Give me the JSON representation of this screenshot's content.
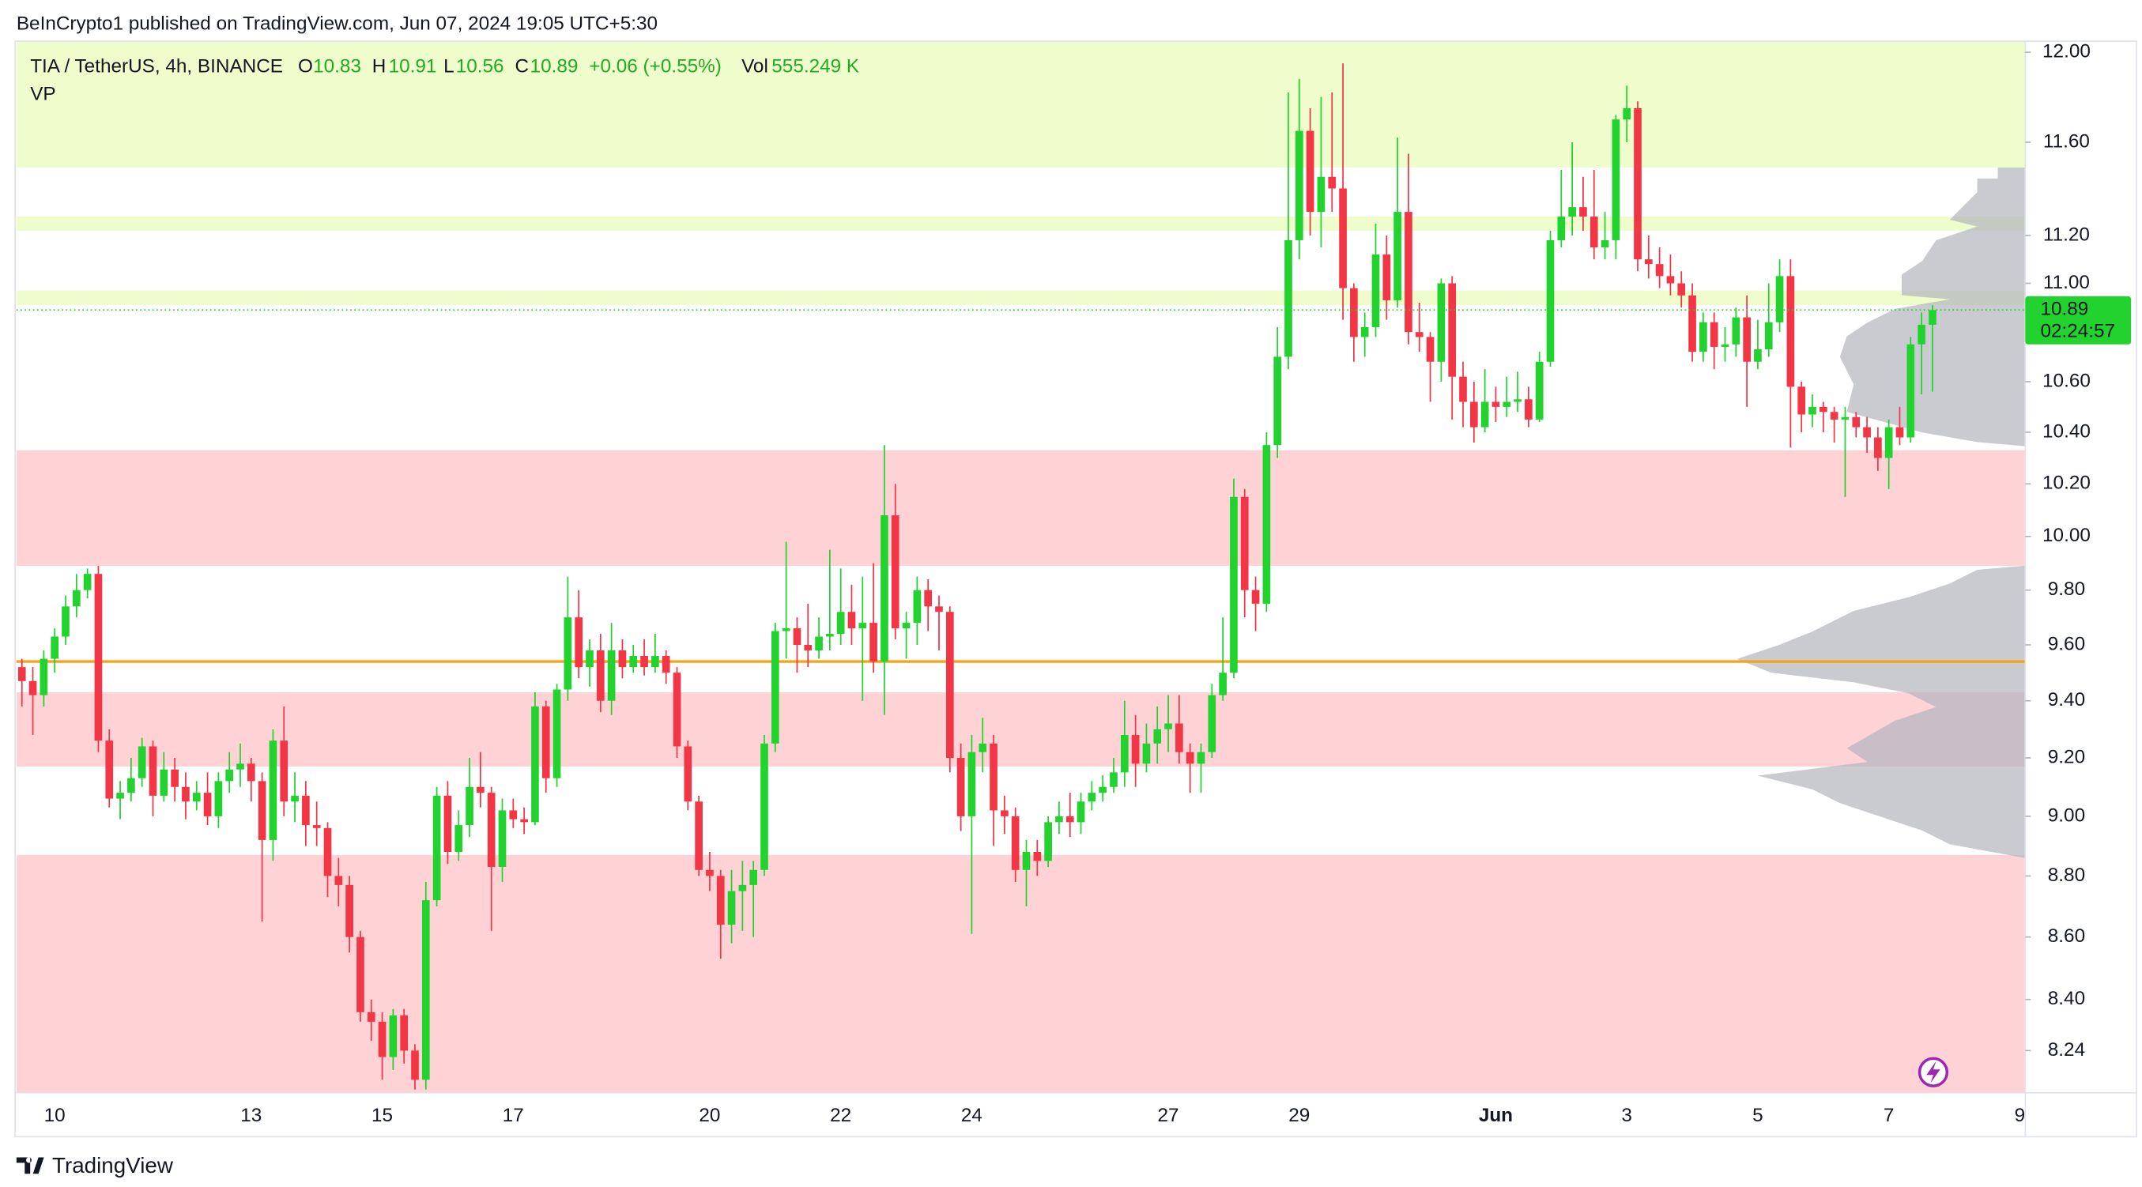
{
  "chart_data": {
    "type": "candlestick",
    "header": "BeInCrypto1 published on TradingView.com, Jun 07, 2024 19:05 UTC+5:30",
    "legend": {
      "symbol": "TIA / TetherUS, 4h, BINANCE",
      "o": "O",
      "h": "H",
      "l": "L",
      "c": "C",
      "change": "+0.06 (+0.55%)",
      "vol": "Vol",
      "volume": "555.249 K",
      "indicator": "VP"
    },
    "footer": "TradingView",
    "countdown": "02:24:57",
    "last_price": 10.89,
    "log": true,
    "up_color": "#22d22f",
    "down_color": "#f23645",
    "level": {
      "value": 9.54,
      "color": "#f7a21b"
    },
    "zones": [
      {
        "from": 11.49,
        "to": 12.05,
        "color": "#effccb"
      },
      {
        "from": 11.22,
        "to": 11.28,
        "color": "#effccb"
      },
      {
        "from": 10.91,
        "to": 10.97,
        "color": "#effccb"
      },
      {
        "from": 9.89,
        "to": 10.33,
        "color": "#ffd3d6"
      },
      {
        "from": 9.17,
        "to": 9.43,
        "color": "#ffd3d6"
      },
      {
        "from": 8.11,
        "to": 8.87,
        "color": "#ffd3d6"
      }
    ],
    "ylim": [
      8.11,
      12.05
    ],
    "yticks": [
      {
        "value": 12,
        "label": "12.00"
      },
      {
        "value": 11.6,
        "label": "11.60"
      },
      {
        "value": 11.2,
        "label": "11.20"
      },
      {
        "value": 11,
        "label": "11.00"
      },
      {
        "value": 10.6,
        "label": "10.60"
      },
      {
        "value": 10.4,
        "label": "10.40"
      },
      {
        "value": 10.2,
        "label": "10.20"
      },
      {
        "value": 10,
        "label": "10.00"
      },
      {
        "value": 9.8,
        "label": "9.80"
      },
      {
        "value": 9.6,
        "label": "9.60"
      },
      {
        "value": 9.4,
        "label": "9.40"
      },
      {
        "value": 9.2,
        "label": "9.20"
      },
      {
        "value": 9,
        "label": "9.00"
      },
      {
        "value": 8.8,
        "label": "8.80"
      },
      {
        "value": 8.6,
        "label": "8.60"
      },
      {
        "value": 8.4,
        "label": "8.40"
      },
      {
        "value": 8.24,
        "label": "8.24"
      }
    ],
    "categories": [
      null,
      null,
      null,
      "10",
      null,
      null,
      null,
      null,
      null,
      null,
      null,
      null,
      null,
      null,
      null,
      null,
      null,
      null,
      null,
      null,
      null,
      "13",
      null,
      null,
      null,
      null,
      null,
      null,
      null,
      null,
      null,
      null,
      null,
      "15",
      null,
      null,
      null,
      null,
      null,
      null,
      null,
      null,
      null,
      null,
      null,
      "17",
      null,
      null,
      null,
      null,
      null,
      null,
      null,
      null,
      null,
      null,
      null,
      null,
      null,
      null,
      null,
      null,
      null,
      "20",
      null,
      null,
      null,
      null,
      null,
      null,
      null,
      null,
      null,
      null,
      null,
      "22",
      null,
      null,
      null,
      null,
      null,
      null,
      null,
      null,
      null,
      null,
      null,
      "24",
      null,
      null,
      null,
      null,
      null,
      null,
      null,
      null,
      null,
      null,
      null,
      null,
      null,
      null,
      null,
      null,
      null,
      "27",
      null,
      null,
      null,
      null,
      null,
      null,
      null,
      null,
      null,
      null,
      null,
      "29",
      null,
      null,
      null,
      null,
      null,
      null,
      null,
      null,
      null,
      null,
      null,
      null,
      null,
      null,
      null,
      null,
      null,
      "Jun",
      null,
      null,
      null,
      null,
      null,
      null,
      null,
      null,
      null,
      null,
      null,
      "3",
      null,
      null,
      null,
      null,
      null,
      null,
      null,
      null,
      null,
      null,
      null,
      "5",
      null,
      null,
      null,
      null,
      null,
      null,
      null,
      null,
      null,
      null,
      null,
      "7",
      null,
      null,
      null,
      null,
      null,
      null,
      null,
      null,
      null,
      null,
      null,
      "9"
    ],
    "open": [
      9.52,
      9.47,
      9.42,
      9.55,
      9.63,
      9.74,
      9.8,
      9.86,
      9.26,
      9.06,
      9.08,
      9.13,
      9.24,
      9.07,
      9.16,
      9.1,
      9.05,
      9.08,
      9.0,
      9.12,
      9.16,
      9.18,
      9.12,
      8.92,
      9.26,
      9.05,
      9.07,
      8.97,
      8.96,
      8.8,
      8.77,
      8.6,
      8.36,
      8.33,
      8.22,
      8.35,
      8.24,
      8.15,
      8.72,
      9.07,
      8.88,
      8.97,
      9.1,
      9.08,
      8.83,
      9.02,
      8.99,
      8.98,
      9.38,
      9.13,
      9.44,
      9.7,
      9.52,
      9.58,
      9.4,
      9.58,
      9.52,
      9.56,
      9.52,
      9.56,
      9.5,
      9.24,
      9.05,
      8.82,
      8.8,
      8.64,
      8.75,
      8.77,
      8.82,
      9.25,
      9.65,
      9.66,
      9.6,
      9.58,
      9.63,
      9.64,
      9.72,
      9.66,
      9.68,
      9.54,
      10.08,
      9.66,
      9.68,
      9.8,
      9.74,
      9.72,
      9.2,
      9.0,
      9.22,
      9.25,
      9.02,
      9.0,
      8.82,
      8.88,
      8.85,
      8.98,
      9.0,
      8.98,
      9.05,
      9.08,
      9.1,
      9.15,
      9.28,
      9.18,
      9.25,
      9.3,
      9.32,
      9.22,
      9.18,
      9.22,
      9.42,
      9.5,
      10.15,
      9.8,
      9.75,
      10.35,
      10.7,
      11.18,
      11.65,
      11.3,
      11.45,
      11.4,
      10.98,
      10.78,
      10.82,
      11.12,
      10.93,
      11.3,
      10.8,
      10.78,
      10.68,
      11.0,
      10.62,
      10.52,
      10.42,
      10.52,
      10.5,
      10.52,
      10.53,
      10.45,
      10.68,
      11.18,
      11.28,
      11.32,
      11.28,
      11.15,
      11.18,
      11.7,
      11.75,
      11.1,
      11.08,
      11.03,
      11.0,
      10.95,
      10.72,
      10.84,
      10.74,
      10.75,
      10.86,
      10.68,
      10.73,
      10.84,
      11.03,
      10.58,
      10.47,
      10.5,
      10.48,
      10.45,
      10.46,
      10.42,
      10.38,
      10.3,
      10.42,
      10.38,
      10.75,
      10.83,
      null,
      null,
      null,
      null,
      null,
      null,
      null,
      null
    ],
    "high": [
      9.55,
      9.52,
      9.58,
      9.66,
      9.78,
      9.86,
      9.88,
      9.89,
      9.3,
      9.12,
      9.2,
      9.27,
      9.26,
      9.22,
      9.2,
      9.15,
      9.12,
      9.15,
      9.15,
      9.22,
      9.25,
      9.2,
      9.15,
      9.3,
      9.38,
      9.15,
      9.12,
      9.05,
      8.98,
      8.86,
      8.8,
      8.62,
      8.4,
      8.36,
      8.37,
      8.37,
      8.26,
      8.78,
      9.1,
      9.12,
      9.02,
      9.2,
      9.22,
      9.1,
      9.06,
      9.06,
      9.03,
      9.43,
      9.4,
      9.46,
      9.85,
      9.8,
      9.62,
      9.64,
      9.68,
      9.62,
      9.6,
      9.62,
      9.64,
      9.58,
      9.52,
      9.26,
      9.07,
      8.88,
      8.82,
      8.82,
      8.85,
      8.85,
      9.28,
      9.68,
      9.98,
      9.7,
      9.75,
      9.7,
      9.95,
      9.88,
      9.82,
      9.85,
      9.9,
      10.35,
      10.2,
      9.72,
      9.85,
      9.84,
      9.78,
      9.74,
      9.25,
      9.28,
      9.34,
      9.28,
      9.07,
      9.03,
      8.92,
      8.92,
      9.0,
      9.05,
      9.08,
      9.08,
      9.12,
      9.14,
      9.2,
      9.4,
      9.35,
      9.32,
      9.38,
      9.42,
      9.42,
      9.25,
      9.25,
      9.46,
      9.7,
      10.22,
      10.18,
      9.85,
      10.4,
      10.82,
      11.82,
      11.88,
      11.75,
      11.8,
      11.82,
      11.95,
      11.0,
      10.88,
      11.25,
      11.2,
      11.62,
      11.55,
      10.92,
      10.8,
      11.02,
      11.03,
      10.68,
      10.6,
      10.65,
      10.58,
      10.62,
      10.64,
      10.58,
      10.72,
      11.22,
      11.48,
      11.6,
      11.45,
      11.48,
      11.3,
      11.72,
      11.85,
      11.78,
      11.2,
      11.15,
      11.12,
      11.05,
      11.0,
      10.88,
      10.88,
      10.82,
      10.9,
      10.95,
      10.85,
      11.0,
      11.1,
      11.1,
      10.6,
      10.55,
      10.52,
      10.5,
      10.5,
      10.48,
      10.46,
      10.42,
      10.45,
      10.5,
      10.78,
      10.88,
      10.91,
      null,
      null,
      null,
      null,
      null,
      null,
      null,
      null
    ],
    "low": [
      9.38,
      9.28,
      9.38,
      9.5,
      9.6,
      9.7,
      9.77,
      9.22,
      9.03,
      8.99,
      9.05,
      9.1,
      9.0,
      9.05,
      9.05,
      8.99,
      9.02,
      8.97,
      8.96,
      9.08,
      9.1,
      9.05,
      8.65,
      8.85,
      9.0,
      8.98,
      8.9,
      8.9,
      8.73,
      8.7,
      8.55,
      8.33,
      8.27,
      8.15,
      8.18,
      8.2,
      8.12,
      8.12,
      8.7,
      8.84,
      8.85,
      8.93,
      9.03,
      8.62,
      8.78,
      8.96,
      8.94,
      8.97,
      9.08,
      9.1,
      9.4,
      9.48,
      9.45,
      9.36,
      9.35,
      9.48,
      9.5,
      9.49,
      9.5,
      9.46,
      9.2,
      9.02,
      8.8,
      8.75,
      8.53,
      8.58,
      8.62,
      8.6,
      8.8,
      9.22,
      9.55,
      9.5,
      9.52,
      9.55,
      9.58,
      9.6,
      9.6,
      9.4,
      9.5,
      9.35,
      9.62,
      9.55,
      9.6,
      9.65,
      9.58,
      9.15,
      8.95,
      8.61,
      9.15,
      8.9,
      8.94,
      8.78,
      8.7,
      8.8,
      8.83,
      8.94,
      8.93,
      8.94,
      9.02,
      9.05,
      9.08,
      9.1,
      9.1,
      9.15,
      9.18,
      9.22,
      9.18,
      9.08,
      9.08,
      9.2,
      9.4,
      9.48,
      9.7,
      9.65,
      9.72,
      10.3,
      10.65,
      11.1,
      11.2,
      11.15,
      11.3,
      10.85,
      10.68,
      10.7,
      10.78,
      10.85,
      10.9,
      10.75,
      10.72,
      10.52,
      10.6,
      10.45,
      10.42,
      10.36,
      10.4,
      10.44,
      10.46,
      10.48,
      10.42,
      10.44,
      10.66,
      11.15,
      11.2,
      11.22,
      11.1,
      11.1,
      11.1,
      11.6,
      11.05,
      11.02,
      10.98,
      10.95,
      10.9,
      10.68,
      10.68,
      10.65,
      10.68,
      10.7,
      10.5,
      10.65,
      10.7,
      10.8,
      10.34,
      10.4,
      10.42,
      10.4,
      10.36,
      10.15,
      10.38,
      10.32,
      10.25,
      10.18,
      10.35,
      10.36,
      10.55,
      10.56,
      null,
      null,
      null,
      null,
      null,
      null,
      null,
      null
    ],
    "close": [
      9.47,
      9.42,
      9.55,
      9.63,
      9.74,
      9.8,
      9.86,
      9.26,
      9.06,
      9.08,
      9.13,
      9.24,
      9.07,
      9.16,
      9.1,
      9.05,
      9.08,
      9.0,
      9.12,
      9.16,
      9.18,
      9.12,
      8.92,
      9.26,
      9.05,
      9.07,
      8.97,
      8.96,
      8.8,
      8.77,
      8.6,
      8.36,
      8.33,
      8.22,
      8.35,
      8.24,
      8.15,
      8.72,
      9.07,
      8.88,
      8.97,
      9.1,
      9.08,
      8.83,
      9.02,
      8.99,
      8.98,
      9.38,
      9.13,
      9.44,
      9.7,
      9.52,
      9.58,
      9.4,
      9.58,
      9.52,
      9.56,
      9.52,
      9.56,
      9.5,
      9.24,
      9.05,
      8.82,
      8.8,
      8.64,
      8.75,
      8.77,
      8.82,
      9.25,
      9.65,
      9.66,
      9.6,
      9.58,
      9.63,
      9.64,
      9.72,
      9.66,
      9.68,
      9.54,
      10.08,
      9.66,
      9.68,
      9.8,
      9.74,
      9.72,
      9.2,
      9.0,
      9.22,
      9.25,
      9.02,
      9.0,
      8.82,
      8.88,
      8.85,
      8.98,
      9.0,
      8.98,
      9.05,
      9.08,
      9.1,
      9.15,
      9.28,
      9.18,
      9.25,
      9.3,
      9.32,
      9.22,
      9.18,
      9.22,
      9.42,
      9.5,
      10.15,
      9.8,
      9.75,
      10.35,
      10.7,
      11.18,
      11.65,
      11.3,
      11.45,
      11.4,
      10.98,
      10.78,
      10.82,
      11.12,
      10.93,
      11.3,
      10.8,
      10.78,
      10.68,
      11.0,
      10.62,
      10.52,
      10.42,
      10.52,
      10.5,
      10.52,
      10.53,
      10.45,
      10.68,
      11.18,
      11.28,
      11.32,
      11.28,
      11.15,
      11.18,
      11.7,
      11.75,
      11.1,
      11.08,
      11.03,
      11.0,
      10.95,
      10.72,
      10.84,
      10.74,
      10.75,
      10.86,
      10.68,
      10.73,
      10.84,
      11.03,
      10.58,
      10.47,
      10.5,
      10.48,
      10.45,
      10.46,
      10.42,
      10.38,
      10.3,
      10.42,
      10.38,
      10.75,
      10.83,
      10.89,
      null,
      null,
      null,
      null,
      null,
      null,
      null,
      null
    ]
  }
}
